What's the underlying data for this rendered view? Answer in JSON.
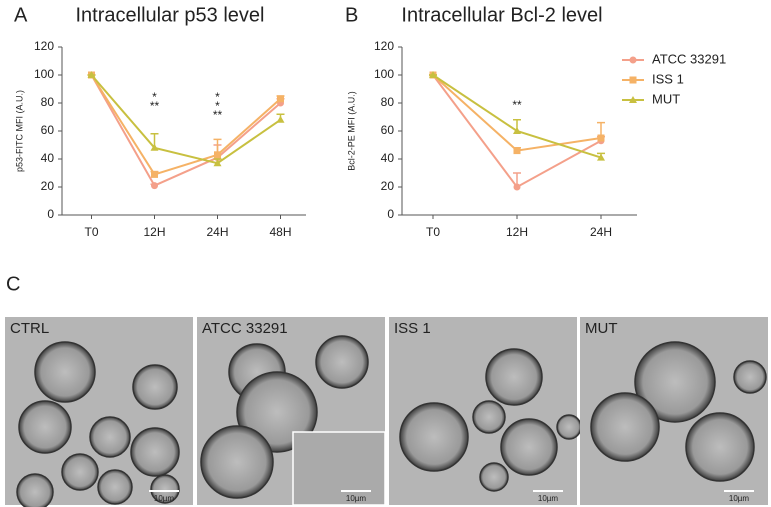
{
  "chart_data": [
    {
      "type": "line",
      "label": "A",
      "title": "Intracellular p53 level",
      "y_label": "p53-FITC MFI (A.U.)",
      "categories": [
        "T0",
        "12H",
        "24H",
        "48H"
      ],
      "series": [
        {
          "name": "ATCC 33291",
          "color": "#f4a08a",
          "marker": "circle",
          "values": [
            100,
            21,
            41,
            80
          ],
          "errors": [
            0,
            1,
            9,
            3
          ]
        },
        {
          "name": "ISS 1",
          "color": "#f5b266",
          "marker": "square",
          "values": [
            100,
            29,
            43,
            83
          ],
          "errors": [
            0,
            2,
            11,
            2
          ]
        },
        {
          "name": "MUT",
          "color": "#c8c040",
          "marker": "triangle",
          "values": [
            100,
            48,
            37,
            68
          ],
          "errors": [
            0,
            10,
            3,
            4
          ]
        }
      ],
      "annotations": [
        {
          "text": "*",
          "color": "#f5b266",
          "category": "12H"
        },
        {
          "text": "**",
          "color": "#f4a08a",
          "category": "12H"
        },
        {
          "text": "*",
          "color": "#f5b266",
          "category": "24H"
        },
        {
          "text": "*",
          "color": "#c8c040",
          "category": "24H"
        },
        {
          "text": "**",
          "color": "#c8c040",
          "category": "24H"
        }
      ],
      "ylim": [
        0,
        120
      ],
      "yticks": [
        0,
        20,
        40,
        60,
        80,
        100,
        120
      ]
    },
    {
      "type": "line",
      "label": "B",
      "title": "Intracellular Bcl-2 level",
      "y_label": "Bcl-2-PE MFI (A.U.)",
      "categories": [
        "T0",
        "12H",
        "24H"
      ],
      "series": [
        {
          "name": "ATCC 33291",
          "color": "#f4a08a",
          "marker": "circle",
          "values": [
            100,
            20,
            53
          ],
          "errors": [
            0,
            10,
            3
          ]
        },
        {
          "name": "ISS 1",
          "color": "#f5b266",
          "marker": "square",
          "values": [
            100,
            46,
            55
          ],
          "errors": [
            0,
            2,
            11
          ]
        },
        {
          "name": "MUT",
          "color": "#c8c040",
          "marker": "triangle",
          "values": [
            100,
            60,
            41
          ],
          "errors": [
            0,
            8,
            3
          ]
        }
      ],
      "annotations": [
        {
          "text": "**",
          "color": "#f4a08a",
          "category": "12H"
        }
      ],
      "ylim": [
        0,
        120
      ],
      "yticks": [
        0,
        20,
        40,
        60,
        80,
        100,
        120
      ],
      "legend": "right"
    }
  ],
  "figure_c": {
    "label": "C",
    "panels": [
      "CTRL",
      "ATCC 33291",
      "ISS 1",
      "MUT"
    ],
    "scale_bar": "10µm"
  }
}
